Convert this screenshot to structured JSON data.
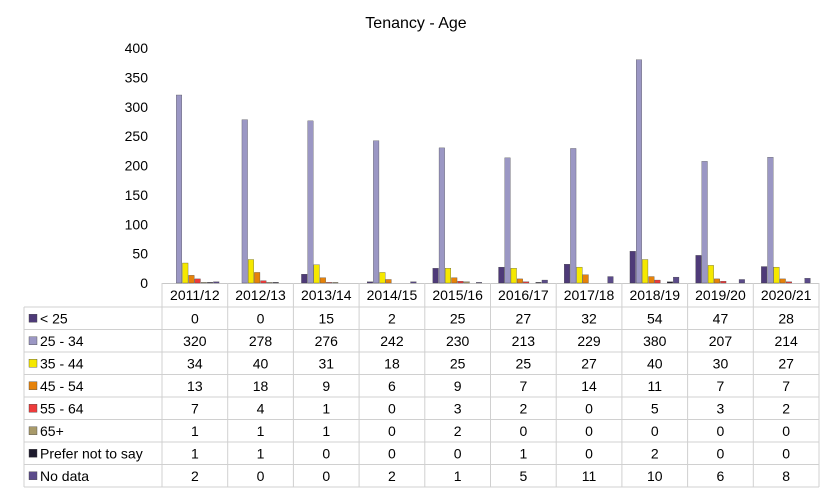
{
  "chart_data": {
    "type": "bar",
    "title": "Tenancy - Age",
    "xlabel": "",
    "ylabel": "",
    "ylim": [
      0,
      400
    ],
    "yticks": [
      0,
      50,
      100,
      150,
      200,
      250,
      300,
      350,
      400
    ],
    "grid": false,
    "legend": "data-table",
    "categories": [
      "2011/12",
      "2012/13",
      "2013/14",
      "2014/15",
      "2015/16",
      "2016/17",
      "2017/18",
      "2018/19",
      "2019/20",
      "2020/21"
    ],
    "series": [
      {
        "name": "< 25",
        "color": "#4e3a78",
        "values": [
          0,
          0,
          15,
          2,
          25,
          27,
          32,
          54,
          47,
          28
        ]
      },
      {
        "name": "25 - 34",
        "color": "#9b97c4",
        "values": [
          320,
          278,
          276,
          242,
          230,
          213,
          229,
          380,
          207,
          214
        ]
      },
      {
        "name": "35 - 44",
        "color": "#f5e800",
        "values": [
          34,
          40,
          31,
          18,
          25,
          25,
          27,
          40,
          30,
          27
        ]
      },
      {
        "name": "45 - 54",
        "color": "#e6820a",
        "values": [
          13,
          18,
          9,
          6,
          9,
          7,
          14,
          11,
          7,
          7
        ]
      },
      {
        "name": "55 - 64",
        "color": "#ee3b3b",
        "values": [
          7,
          4,
          1,
          0,
          3,
          2,
          0,
          5,
          3,
          2
        ]
      },
      {
        "name": "65+",
        "color": "#a89a6a",
        "values": [
          1,
          1,
          1,
          0,
          2,
          0,
          0,
          0,
          0,
          0
        ]
      },
      {
        "name": "Prefer not to say",
        "color": "#1e1b2e",
        "values": [
          1,
          1,
          0,
          0,
          0,
          1,
          0,
          2,
          0,
          0
        ]
      },
      {
        "name": "No data",
        "color": "#5b4b8a",
        "values": [
          2,
          0,
          0,
          2,
          1,
          5,
          11,
          10,
          6,
          8
        ]
      }
    ]
  }
}
